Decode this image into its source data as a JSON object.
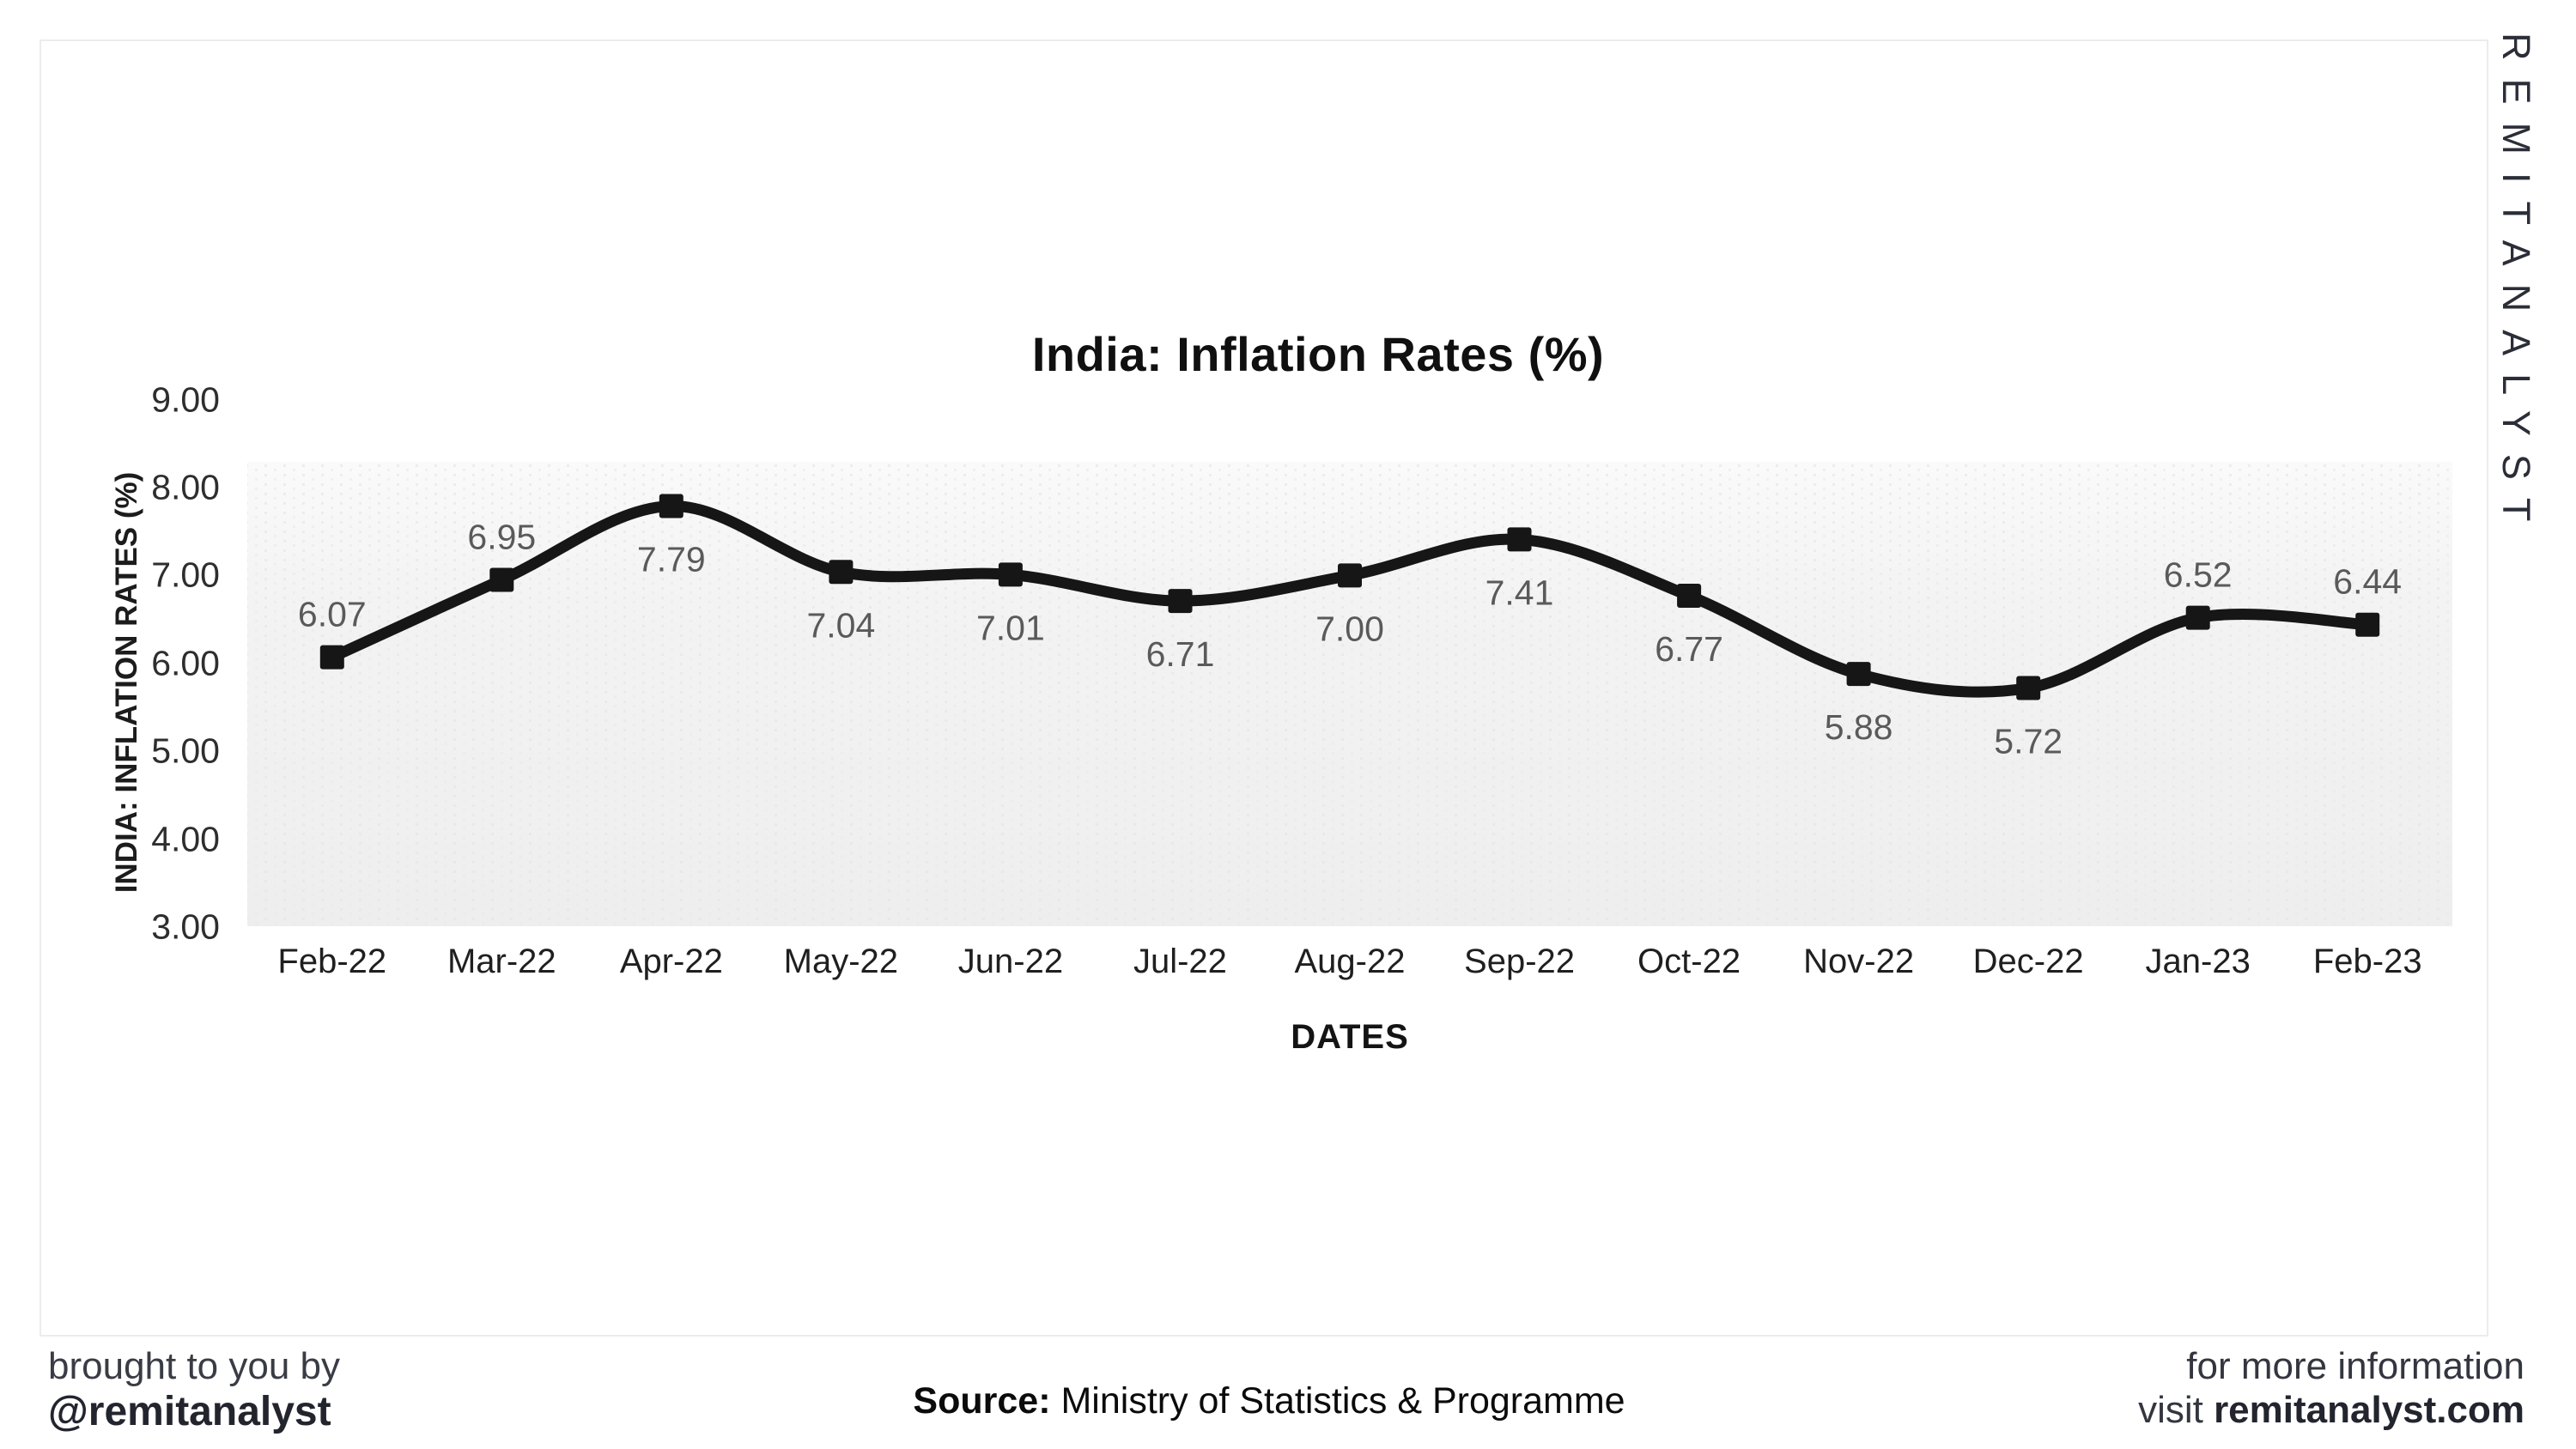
{
  "brand_vertical": "REMITANALYST",
  "chart_data": {
    "type": "line",
    "title": "India: Inflation Rates (%)",
    "xlabel": "DATES",
    "ylabel": "INDIA: INFLATION RATES (%)",
    "categories": [
      "Feb-22",
      "Mar-22",
      "Apr-22",
      "May-22",
      "Jun-22",
      "Jul-22",
      "Aug-22",
      "Sep-22",
      "Oct-22",
      "Nov-22",
      "Dec-22",
      "Jan-23",
      "Feb-23"
    ],
    "values": [
      6.07,
      6.95,
      7.79,
      7.04,
      7.01,
      6.71,
      7.0,
      7.41,
      6.77,
      5.88,
      5.72,
      6.52,
      6.44
    ],
    "value_labels": [
      "6.07",
      "6.95",
      "7.79",
      "7.04",
      "7.01",
      "6.71",
      "7.00",
      "7.41",
      "6.77",
      "5.88",
      "5.72",
      "6.52",
      "6.44"
    ],
    "label_position": [
      "above",
      "above",
      "below",
      "below",
      "below",
      "below",
      "below",
      "below",
      "below",
      "below",
      "below",
      "above",
      "above"
    ],
    "y_tick_labels": [
      "9.00",
      "8.00",
      "7.00",
      "6.00",
      "5.00",
      "4.00",
      "3.00"
    ],
    "ylim": [
      3,
      9
    ],
    "grid": false,
    "legend": "none",
    "line_color": "#161616",
    "marker_shape": "square",
    "data_label_color": "#5a5a5a",
    "plot_bg_color": "#f1f1f1"
  },
  "footer": {
    "left_line1": "brought to you by",
    "left_line2": "@remitanalyst",
    "source_label": "Source:",
    "source_text": " Ministry of Statistics & Programme",
    "right_line1": "for more information",
    "right_line2_prefix": "visit ",
    "right_line2_site": "remitanalyst.com"
  }
}
